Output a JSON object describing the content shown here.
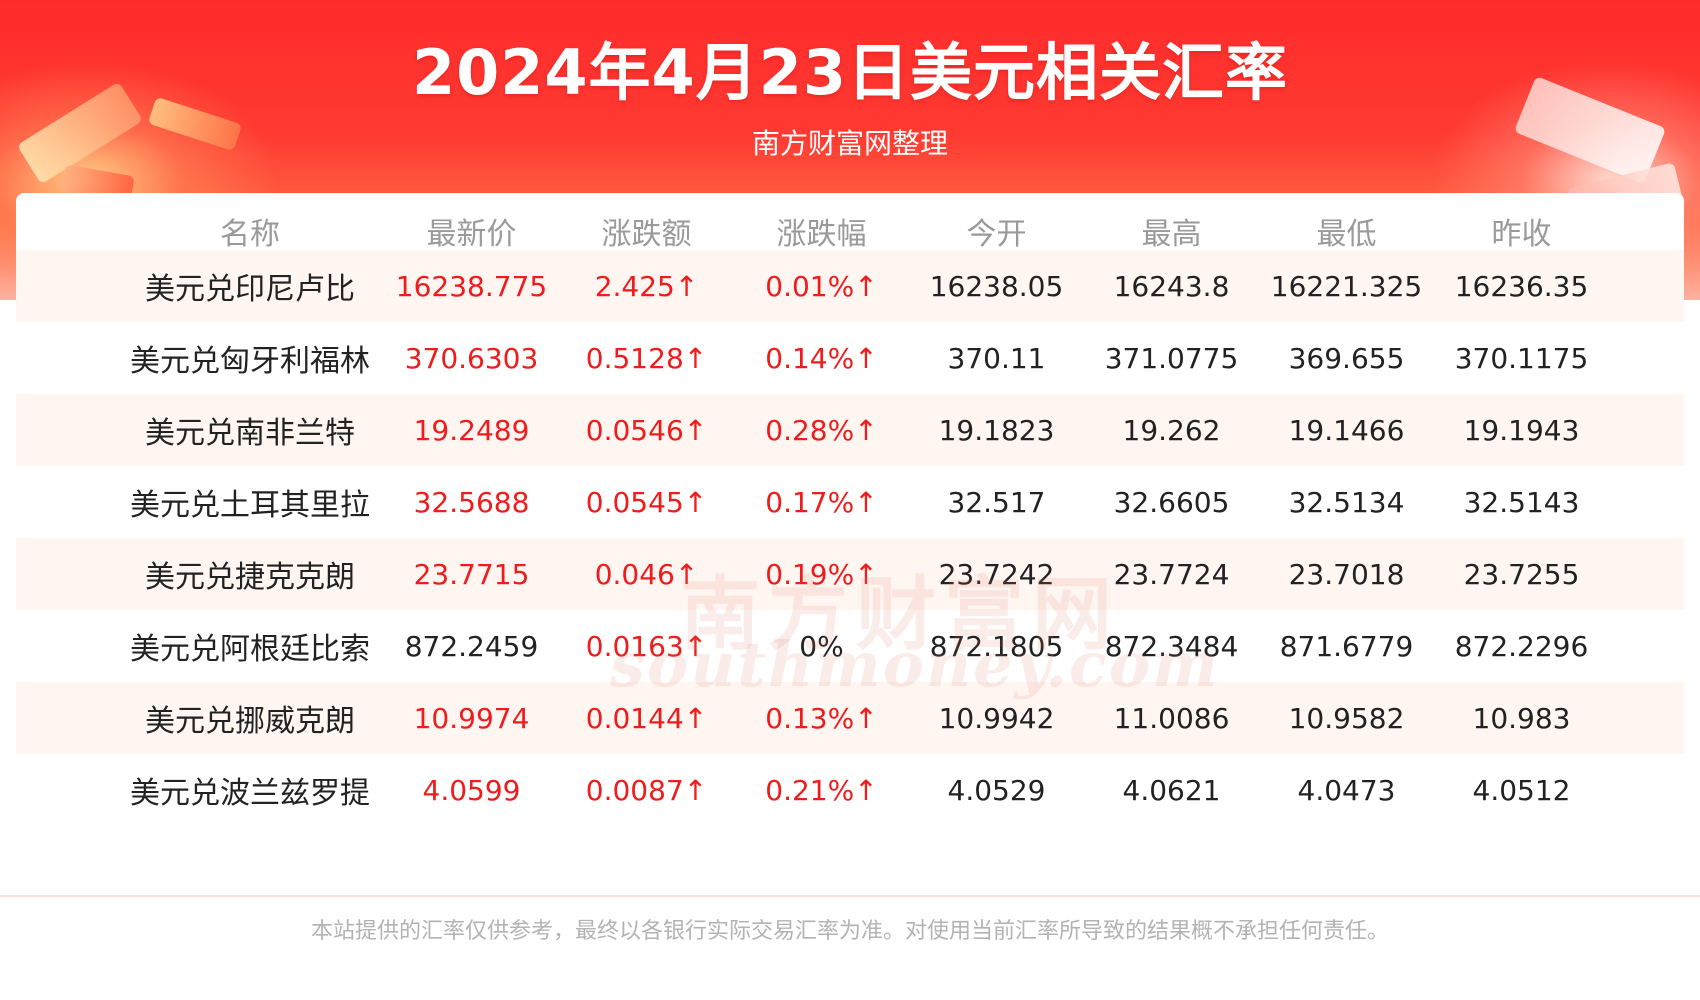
{
  "header": {
    "title": "2024年4月23日美元相关汇率",
    "subtitle": "南方财富网整理"
  },
  "table": {
    "columns": [
      "名称",
      "最新价",
      "涨跌额",
      "涨跌幅",
      "今开",
      "最高",
      "最低",
      "昨收"
    ],
    "rows": [
      [
        "美元兑印尼卢比",
        "16238.775",
        "2.425↑",
        "0.01%↑",
        "16238.05",
        "16243.8",
        "16221.325",
        "16236.35"
      ],
      [
        "美元兑匈牙利福林",
        "370.6303",
        "0.5128↑",
        "0.14%↑",
        "370.11",
        "371.0775",
        "369.655",
        "370.1175"
      ],
      [
        "美元兑南非兰特",
        "19.2489",
        "0.0546↑",
        "0.28%↑",
        "19.1823",
        "19.262",
        "19.1466",
        "19.1943"
      ],
      [
        "美元兑土耳其里拉",
        "32.5688",
        "0.0545↑",
        "0.17%↑",
        "32.517",
        "32.6605",
        "32.5134",
        "32.5143"
      ],
      [
        "美元兑捷克克朗",
        "23.7715",
        "0.046↑",
        "0.19%↑",
        "23.7242",
        "23.7724",
        "23.7018",
        "23.7255"
      ],
      [
        "美元兑阿根廷比索",
        "872.2459",
        "0.0163↑",
        "0%",
        "872.1805",
        "872.3484",
        "871.6779",
        "872.2296"
      ],
      [
        "美元兑挪威克朗",
        "10.9974",
        "0.0144↑",
        "0.13%↑",
        "10.9942",
        "11.0086",
        "10.9582",
        "10.983"
      ],
      [
        "美元兑波兰兹罗提",
        "4.0599",
        "0.0087↑",
        "0.21%↑",
        "4.0529",
        "4.0621",
        "4.0473",
        "4.0512"
      ]
    ],
    "row_colors": [
      [
        "#222222",
        "#f01c1c",
        "#f01c1c",
        "#f01c1c",
        "#222222",
        "#222222",
        "#222222",
        "#222222"
      ],
      [
        "#222222",
        "#f01c1c",
        "#f01c1c",
        "#f01c1c",
        "#222222",
        "#222222",
        "#222222",
        "#222222"
      ],
      [
        "#222222",
        "#f01c1c",
        "#f01c1c",
        "#f01c1c",
        "#222222",
        "#222222",
        "#222222",
        "#222222"
      ],
      [
        "#222222",
        "#f01c1c",
        "#f01c1c",
        "#f01c1c",
        "#222222",
        "#222222",
        "#222222",
        "#222222"
      ],
      [
        "#222222",
        "#f01c1c",
        "#f01c1c",
        "#f01c1c",
        "#222222",
        "#222222",
        "#222222",
        "#222222"
      ],
      [
        "#222222",
        "#222222",
        "#f01c1c",
        "#222222",
        "#222222",
        "#222222",
        "#222222",
        "#222222"
      ],
      [
        "#222222",
        "#f01c1c",
        "#f01c1c",
        "#f01c1c",
        "#222222",
        "#222222",
        "#222222",
        "#222222"
      ],
      [
        "#222222",
        "#f01c1c",
        "#f01c1c",
        "#f01c1c",
        "#222222",
        "#222222",
        "#222222",
        "#222222"
      ]
    ]
  },
  "watermark": {
    "cn": "南方财富网",
    "en": "southmoney.com"
  },
  "footer": {
    "disclaimer": "本站提供的汇率仅供参考，最终以各银行实际交易汇率为准。对使用当前汇率所导致的结果概不承担任何责任。"
  },
  "colors": {
    "banner_red": "#ff2b2b",
    "up_red": "#f01c1c",
    "text_dark": "#222222",
    "header_gray": "#9a9a9a",
    "row_tint": "#fff6f2"
  }
}
